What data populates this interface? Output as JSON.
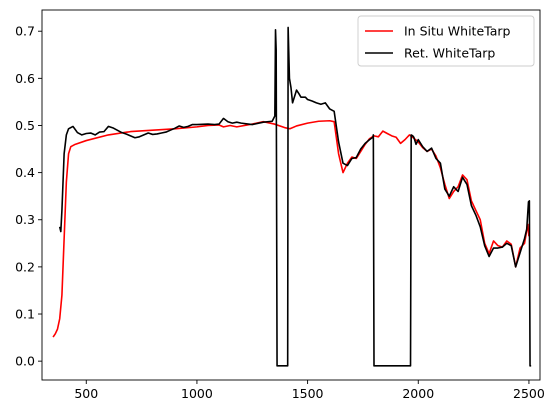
{
  "chart_data": {
    "type": "line",
    "title": "",
    "xlabel": "",
    "ylabel": "",
    "xlim": [
      300,
      2550
    ],
    "ylim": [
      -0.04,
      0.745
    ],
    "xticks": [
      500,
      1000,
      1500,
      2000,
      2500
    ],
    "yticks": [
      0.0,
      0.1,
      0.2,
      0.3,
      0.4,
      0.5,
      0.6,
      0.7
    ],
    "grid": false,
    "legend_position": "top-right",
    "series": [
      {
        "name": "In Situ WhiteTarp",
        "color": "#ff0000",
        "points": [
          [
            350,
            0.051
          ],
          [
            360,
            0.058
          ],
          [
            370,
            0.068
          ],
          [
            380,
            0.09
          ],
          [
            390,
            0.14
          ],
          [
            400,
            0.26
          ],
          [
            410,
            0.38
          ],
          [
            420,
            0.44
          ],
          [
            430,
            0.455
          ],
          [
            450,
            0.46
          ],
          [
            500,
            0.468
          ],
          [
            600,
            0.48
          ],
          [
            700,
            0.487
          ],
          [
            800,
            0.49
          ],
          [
            900,
            0.493
          ],
          [
            1000,
            0.497
          ],
          [
            1050,
            0.5
          ],
          [
            1100,
            0.501
          ],
          [
            1120,
            0.497
          ],
          [
            1150,
            0.5
          ],
          [
            1180,
            0.497
          ],
          [
            1250,
            0.503
          ],
          [
            1300,
            0.508
          ],
          [
            1350,
            0.503
          ],
          [
            1400,
            0.495
          ],
          [
            1420,
            0.493
          ],
          [
            1450,
            0.499
          ],
          [
            1500,
            0.505
          ],
          [
            1550,
            0.509
          ],
          [
            1600,
            0.51
          ],
          [
            1620,
            0.508
          ],
          [
            1640,
            0.44
          ],
          [
            1660,
            0.4
          ],
          [
            1680,
            0.42
          ],
          [
            1700,
            0.433
          ],
          [
            1720,
            0.43
          ],
          [
            1740,
            0.445
          ],
          [
            1760,
            0.46
          ],
          [
            1780,
            0.472
          ],
          [
            1800,
            0.478
          ],
          [
            1820,
            0.476
          ],
          [
            1840,
            0.488
          ],
          [
            1860,
            0.483
          ],
          [
            1880,
            0.478
          ],
          [
            1900,
            0.475
          ],
          [
            1920,
            0.462
          ],
          [
            1940,
            0.47
          ],
          [
            1960,
            0.48
          ],
          [
            1980,
            0.473
          ],
          [
            2000,
            0.465
          ],
          [
            2020,
            0.453
          ],
          [
            2040,
            0.445
          ],
          [
            2060,
            0.45
          ],
          [
            2080,
            0.435
          ],
          [
            2100,
            0.41
          ],
          [
            2120,
            0.375
          ],
          [
            2140,
            0.345
          ],
          [
            2160,
            0.36
          ],
          [
            2180,
            0.37
          ],
          [
            2200,
            0.395
          ],
          [
            2220,
            0.385
          ],
          [
            2240,
            0.34
          ],
          [
            2260,
            0.32
          ],
          [
            2280,
            0.3
          ],
          [
            2300,
            0.25
          ],
          [
            2320,
            0.228
          ],
          [
            2340,
            0.255
          ],
          [
            2360,
            0.245
          ],
          [
            2380,
            0.242
          ],
          [
            2400,
            0.255
          ],
          [
            2420,
            0.248
          ],
          [
            2440,
            0.2
          ],
          [
            2460,
            0.24
          ],
          [
            2480,
            0.25
          ],
          [
            2495,
            0.29
          ],
          [
            2500,
            0.265
          ]
        ]
      },
      {
        "name": "Ret. WhiteTarp",
        "color": "#000000",
        "points": [
          [
            380,
            0.285
          ],
          [
            385,
            0.275
          ],
          [
            390,
            0.32
          ],
          [
            400,
            0.44
          ],
          [
            410,
            0.48
          ],
          [
            420,
            0.493
          ],
          [
            440,
            0.498
          ],
          [
            460,
            0.485
          ],
          [
            480,
            0.48
          ],
          [
            500,
            0.483
          ],
          [
            520,
            0.484
          ],
          [
            540,
            0.48
          ],
          [
            560,
            0.486
          ],
          [
            580,
            0.487
          ],
          [
            600,
            0.498
          ],
          [
            620,
            0.495
          ],
          [
            640,
            0.49
          ],
          [
            660,
            0.485
          ],
          [
            680,
            0.482
          ],
          [
            700,
            0.478
          ],
          [
            720,
            0.474
          ],
          [
            740,
            0.476
          ],
          [
            760,
            0.48
          ],
          [
            780,
            0.484
          ],
          [
            800,
            0.481
          ],
          [
            820,
            0.482
          ],
          [
            840,
            0.484
          ],
          [
            860,
            0.486
          ],
          [
            880,
            0.49
          ],
          [
            900,
            0.494
          ],
          [
            920,
            0.499
          ],
          [
            940,
            0.496
          ],
          [
            960,
            0.498
          ],
          [
            980,
            0.502
          ],
          [
            1000,
            0.502
          ],
          [
            1050,
            0.503
          ],
          [
            1080,
            0.502
          ],
          [
            1100,
            0.503
          ],
          [
            1120,
            0.515
          ],
          [
            1140,
            0.508
          ],
          [
            1160,
            0.505
          ],
          [
            1180,
            0.507
          ],
          [
            1200,
            0.505
          ],
          [
            1250,
            0.502
          ],
          [
            1300,
            0.507
          ],
          [
            1340,
            0.509
          ],
          [
            1352,
            0.52
          ],
          [
            1355,
            0.703
          ],
          [
            1358,
            0.66
          ],
          [
            1362,
            -0.01
          ],
          [
            1410,
            -0.01
          ],
          [
            1412,
            0.708
          ],
          [
            1418,
            0.6
          ],
          [
            1425,
            0.58
          ],
          [
            1432,
            0.548
          ],
          [
            1440,
            0.56
          ],
          [
            1450,
            0.575
          ],
          [
            1460,
            0.568
          ],
          [
            1470,
            0.56
          ],
          [
            1490,
            0.56
          ],
          [
            1500,
            0.555
          ],
          [
            1520,
            0.552
          ],
          [
            1540,
            0.548
          ],
          [
            1560,
            0.545
          ],
          [
            1580,
            0.548
          ],
          [
            1600,
            0.535
          ],
          [
            1620,
            0.53
          ],
          [
            1640,
            0.465
          ],
          [
            1660,
            0.42
          ],
          [
            1680,
            0.415
          ],
          [
            1700,
            0.43
          ],
          [
            1720,
            0.432
          ],
          [
            1740,
            0.45
          ],
          [
            1760,
            0.462
          ],
          [
            1780,
            0.47
          ],
          [
            1795,
            0.475
          ],
          [
            1797,
            0.48
          ],
          [
            1800,
            -0.01
          ],
          [
            1965,
            -0.01
          ],
          [
            1968,
            0.48
          ],
          [
            1975,
            0.478
          ],
          [
            1980,
            0.475
          ],
          [
            1990,
            0.46
          ],
          [
            2000,
            0.47
          ],
          [
            2020,
            0.455
          ],
          [
            2040,
            0.445
          ],
          [
            2060,
            0.452
          ],
          [
            2080,
            0.43
          ],
          [
            2100,
            0.42
          ],
          [
            2120,
            0.365
          ],
          [
            2140,
            0.35
          ],
          [
            2160,
            0.37
          ],
          [
            2180,
            0.36
          ],
          [
            2200,
            0.39
          ],
          [
            2220,
            0.375
          ],
          [
            2240,
            0.33
          ],
          [
            2260,
            0.31
          ],
          [
            2280,
            0.285
          ],
          [
            2300,
            0.245
          ],
          [
            2320,
            0.222
          ],
          [
            2340,
            0.24
          ],
          [
            2360,
            0.24
          ],
          [
            2380,
            0.242
          ],
          [
            2400,
            0.25
          ],
          [
            2420,
            0.245
          ],
          [
            2440,
            0.2
          ],
          [
            2460,
            0.23
          ],
          [
            2480,
            0.26
          ],
          [
            2490,
            0.28
          ],
          [
            2498,
            0.338
          ],
          [
            2502,
            0.34
          ],
          [
            2505,
            -0.01
          ],
          [
            2510,
            -0.01
          ]
        ]
      }
    ]
  }
}
